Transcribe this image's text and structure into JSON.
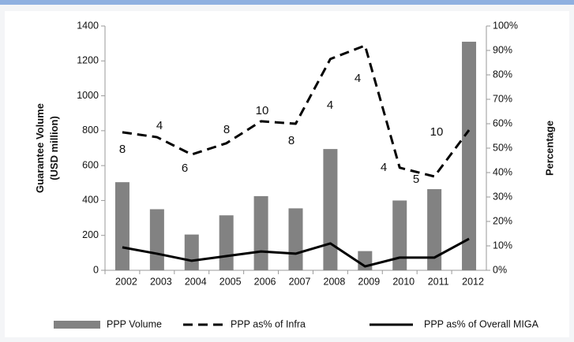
{
  "chart_data": {
    "type": "bar",
    "categories": [
      "2002",
      "2003",
      "2004",
      "2005",
      "2006",
      "2007",
      "2008",
      "2009",
      "2010",
      "2011",
      "2012"
    ],
    "series": [
      {
        "name": "PPP Volume",
        "color": "#828282",
        "type": "bar",
        "values": [
          505,
          350,
          205,
          315,
          425,
          355,
          695,
          110,
          400,
          465,
          1310
        ]
      },
      {
        "name": "PPP as% of Infra",
        "color": "#000000",
        "type": "line",
        "dashed": true,
        "axis": "y2",
        "values": [
          56.5,
          54.5,
          47.4,
          52,
          61,
          60,
          86.5,
          92,
          42,
          38.4,
          57.4
        ]
      },
      {
        "name": "PPP as% of Overall MIGA",
        "color": "#000000",
        "type": "line",
        "dashed": false,
        "axis": "y2",
        "values": [
          9.4,
          6.8,
          3.9,
          5.8,
          7.7,
          6.8,
          11,
          1.6,
          5.2,
          5.2,
          12.9
        ]
      }
    ],
    "annotations": [
      "8",
      "4",
      "6",
      "8",
      "10",
      "8",
      "4",
      "4",
      "4",
      "5",
      "10"
    ],
    "ylabel": "Guarantee Volume (USD million)",
    "y2label": "Percentage",
    "ylim": [
      0,
      1400
    ],
    "yticks": [
      0,
      200,
      400,
      600,
      800,
      1000,
      1200,
      1400
    ],
    "y2lim": [
      0,
      100
    ],
    "y2ticks": [
      {
        "value": 0,
        "label": "0%"
      },
      {
        "value": 10,
        "label": "10%"
      },
      {
        "value": 20,
        "label": "20%"
      },
      {
        "value": 30,
        "label": "30%"
      },
      {
        "value": 40,
        "label": "40%"
      },
      {
        "value": 50,
        "label": "50%"
      },
      {
        "value": 60,
        "label": "60%"
      },
      {
        "value": 70,
        "label": "70%"
      },
      {
        "value": 80,
        "label": "80%"
      },
      {
        "value": 90,
        "label": "90%"
      },
      {
        "value": 100,
        "label": "100%"
      }
    ],
    "legend": "bottom"
  }
}
